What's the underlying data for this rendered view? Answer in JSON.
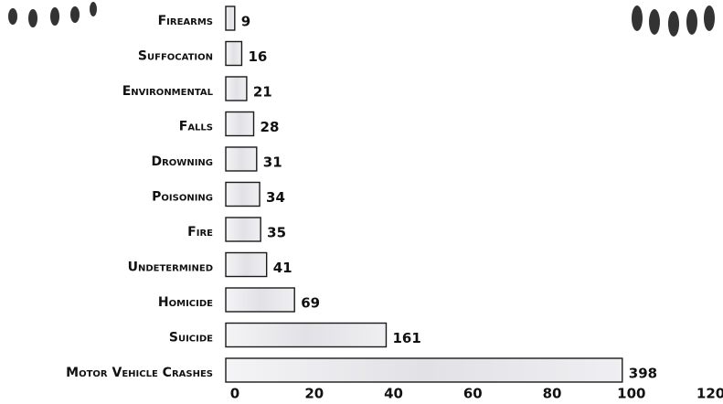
{
  "chart_data": {
    "type": "bar",
    "orientation": "horizontal",
    "categories": [
      "Firearms",
      "Suffocation",
      "Environmental",
      "Falls",
      "Drowning",
      "Poisoning",
      "Fire",
      "Undetermined",
      "Homicide",
      "Suicide",
      "Motor Vehicle Crashes"
    ],
    "values": [
      9,
      16,
      21,
      28,
      31,
      34,
      35,
      41,
      69,
      161,
      398
    ],
    "color": "#e6e6ea",
    "xlim": [
      0,
      478
    ],
    "xticks": [
      {
        "value": 0,
        "label": "0"
      },
      {
        "value": 79.6,
        "label": "20"
      },
      {
        "value": 159.2,
        "label": "40"
      },
      {
        "value": 238.8,
        "label": "60"
      },
      {
        "value": 318.4,
        "label": "80"
      },
      {
        "value": 398,
        "label": "100"
      },
      {
        "value": 477.6,
        "label": "120"
      }
    ],
    "grid": false
  }
}
